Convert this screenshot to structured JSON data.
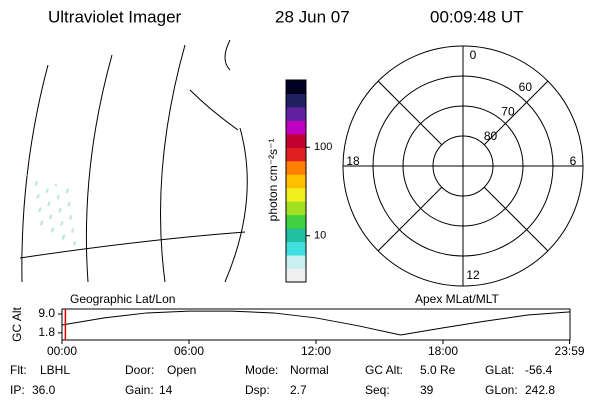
{
  "header": {
    "title": "Ultraviolet Imager",
    "date": "28 Jun 07",
    "time": "00:09:48 UT"
  },
  "colorbar": {
    "label": "photon cm⁻²s⁻¹",
    "log": true,
    "lim": [
      3,
      575
    ],
    "ticks": [
      10,
      100
    ],
    "colors": [
      "#f0f0f0",
      "#c8f0f0",
      "#40e0e0",
      "#20c0a0",
      "#40d040",
      "#a0e020",
      "#f0f020",
      "#ffc000",
      "#ff8000",
      "#e02020",
      "#c00030",
      "#c000c0",
      "#6020a0",
      "#202060",
      "#000020"
    ]
  },
  "polar": {
    "rlim": [
      90,
      50
    ],
    "lat_rings": [
      60,
      70,
      80
    ],
    "mlt_ticks": [
      0,
      6,
      12,
      18
    ]
  },
  "altitude": {
    "ylabel": "GC Alt",
    "left_label": "Geographic Lat/Lon",
    "right_label": "Apex MLat/MLT",
    "xlim": [
      0,
      24
    ],
    "ylim": [
      -0.9,
      10.9
    ],
    "xticks": [
      {
        "value": 0,
        "label": "00:00"
      },
      {
        "value": 6,
        "label": "06:00"
      },
      {
        "value": 12,
        "label": "12:00"
      },
      {
        "value": 18,
        "label": "18:00"
      },
      {
        "value": 23.98,
        "label": "23:59"
      }
    ],
    "yticks": [
      1.8,
      {
        "value": 9,
        "label": "9.0"
      }
    ],
    "x": [
      0,
      2,
      4,
      6,
      8,
      10,
      12,
      14,
      16,
      18,
      20,
      22,
      24
    ],
    "values": [
      4.8,
      7.5,
      9.4,
      10.1,
      10.1,
      9.4,
      7.5,
      4.5,
      1.0,
      3.7,
      6.3,
      8.6,
      9.8
    ],
    "marker_hour": 0.16,
    "marker_color": "#d00000"
  },
  "info": {
    "rows": [
      [
        [
          "Flt:",
          "LBHL"
        ],
        [
          "Door:",
          "Open"
        ],
        [
          "Mode:",
          "Normal"
        ],
        [
          "GC Alt:",
          "5.0 Re"
        ],
        [
          "GLat:",
          "-56.4"
        ]
      ],
      [
        [
          "IP:",
          "36.0"
        ],
        [
          "Gain:",
          "14"
        ],
        [
          "Dsp:",
          "2.7"
        ],
        [
          "Seq:",
          "39"
        ],
        [
          "GLon:",
          "242.8"
        ]
      ]
    ]
  }
}
